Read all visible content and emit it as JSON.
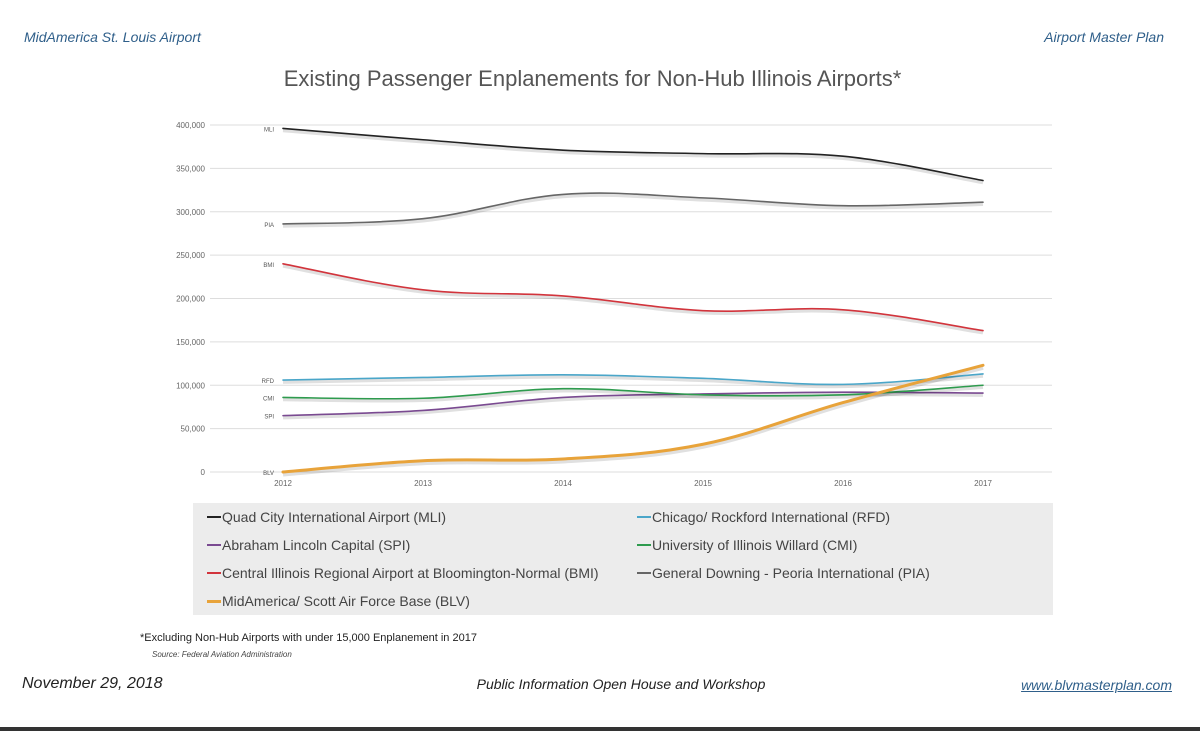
{
  "header": {
    "left": "MidAmerica St. Louis Airport",
    "right": "Airport Master Plan"
  },
  "chart_data": {
    "type": "line",
    "title": "Existing Passenger Enplanements for Non-Hub Illinois Airports*",
    "x": [
      2012,
      2013,
      2014,
      2015,
      2016,
      2017
    ],
    "xlabel": "",
    "ylabel": "",
    "ylim": [
      0,
      400000
    ],
    "yticks": [
      "0",
      "50,000",
      "100,000",
      "150,000",
      "200,000",
      "250,000",
      "300,000",
      "350,000",
      "400,000"
    ],
    "grid": true,
    "legend_position": "bottom",
    "series": [
      {
        "name": "Quad City International Airport (MLI)",
        "label": "MLI",
        "color": "#222222",
        "values": [
          396000,
          383000,
          371000,
          367000,
          364000,
          336000
        ]
      },
      {
        "name": "Chicago/ Rockford International (RFD)",
        "label": "RFD",
        "color": "#4aa6c9",
        "values": [
          106000,
          109000,
          112000,
          108000,
          101000,
          113000
        ]
      },
      {
        "name": "Abraham Lincoln Capital (SPI)",
        "label": "SPI",
        "color": "#7a4a91",
        "values": [
          65000,
          71000,
          86000,
          90000,
          92000,
          91000
        ]
      },
      {
        "name": "University of Illinois Willard (CMI)",
        "label": "CMI",
        "color": "#2e9b4e",
        "values": [
          86000,
          85000,
          96000,
          89000,
          89000,
          100000
        ]
      },
      {
        "name": "Central Illinois Regional Airport at Bloomington-Normal (BMI)",
        "label": "BMI",
        "color": "#d2343c",
        "values": [
          240000,
          210000,
          203000,
          186000,
          187000,
          163000
        ]
      },
      {
        "name": "General Downing - Peoria International (PIA)",
        "label": "PIA",
        "color": "#666666",
        "values": [
          286000,
          292000,
          320000,
          316000,
          307000,
          311000
        ]
      },
      {
        "name": "MidAmerica/ Scott Air Force Base (BLV)",
        "label": "BLV",
        "color": "#e8a33a",
        "values": [
          0,
          13000,
          15000,
          32000,
          80000,
          123000
        ]
      }
    ]
  },
  "footnote": "*Excluding Non-Hub Airports with under 15,000 Enplanement in 2017",
  "source": "Source: Federal Aviation Administration",
  "footer": {
    "date": "November 29, 2018",
    "center": "Public Information Open House and Workshop",
    "url": "www.blvmasterplan.com"
  }
}
